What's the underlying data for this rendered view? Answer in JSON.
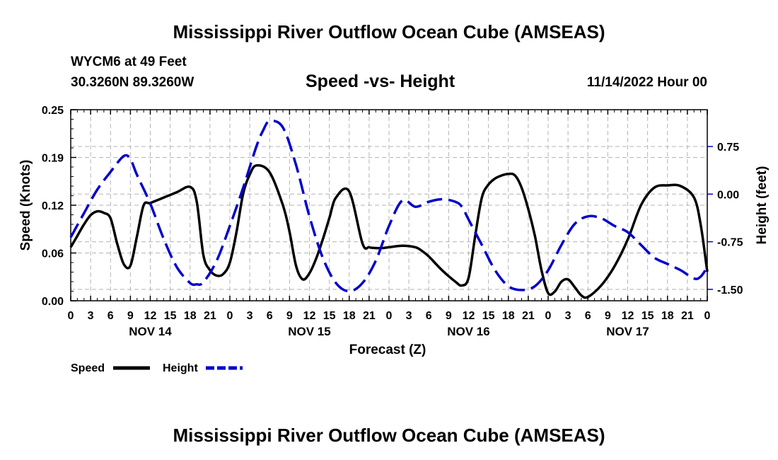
{
  "header": {
    "title": "Mississippi River Outflow Ocean Cube (AMSEAS)",
    "station": "WYCM6 at 49 Feet",
    "coords": "30.3260N  89.3260W",
    "subtitle": "Speed -vs- Height",
    "datetime": "11/14/2022 Hour 00"
  },
  "footer": {
    "title": "Mississippi River Outflow Ocean Cube (AMSEAS)"
  },
  "legend": {
    "speed_label": "Speed",
    "height_label": "Height"
  },
  "colors": {
    "speed": "#000000",
    "height": "#0000cc",
    "grid": "#b4b4b4"
  },
  "chart_data": {
    "type": "line",
    "title": "Speed -vs- Height",
    "xlabel": "Forecast (Z)",
    "ylabel": "Speed (Knots)",
    "y2label": "Height (feet)",
    "xlim": [
      0,
      96
    ],
    "ylim": [
      0,
      0.25
    ],
    "y2lim": [
      -1.68,
      1.33
    ],
    "x_tick_hours": [
      0,
      3,
      6,
      9,
      12,
      15,
      18,
      21,
      24,
      27,
      30,
      33,
      36,
      39,
      42,
      45,
      48,
      51,
      54,
      57,
      60,
      63,
      66,
      69,
      72,
      75,
      78,
      81,
      84,
      87,
      90,
      93,
      96
    ],
    "x_tick_labels": [
      "0",
      "3",
      "6",
      "9",
      "12",
      "15",
      "18",
      "21",
      "0",
      "3",
      "6",
      "9",
      "12",
      "15",
      "18",
      "21",
      "0",
      "3",
      "6",
      "9",
      "12",
      "15",
      "18",
      "21",
      "0",
      "3",
      "6",
      "9",
      "12",
      "15",
      "18",
      "21",
      "0"
    ],
    "day_labels": [
      {
        "label": "NOV 14",
        "hour": 12
      },
      {
        "label": "NOV 15",
        "hour": 36
      },
      {
        "label": "NOV 16",
        "hour": 60
      },
      {
        "label": "NOV 17",
        "hour": 84
      }
    ],
    "y_ticks": [
      {
        "value": 0.0,
        "label": "0.00"
      },
      {
        "value": 0.0625,
        "label": "0.06"
      },
      {
        "value": 0.125,
        "label": "0.12"
      },
      {
        "value": 0.1875,
        "label": "0.19"
      },
      {
        "value": 0.25,
        "label": "0.25"
      }
    ],
    "y2_ticks": [
      {
        "value": 0.75,
        "label": "0.75"
      },
      {
        "value": 0.0,
        "label": "0.00"
      },
      {
        "value": -0.75,
        "label": "-0.75"
      },
      {
        "value": -1.5,
        "label": "-1.50"
      }
    ],
    "series": [
      {
        "name": "Speed",
        "axis": "left",
        "style": "solid",
        "x": [
          0,
          1,
          2,
          3,
          4,
          5,
          6,
          7,
          8,
          9,
          10,
          11,
          12,
          14,
          16,
          18,
          19,
          20,
          21,
          22,
          23,
          24,
          25,
          26,
          27,
          28,
          30,
          32,
          33,
          34,
          35,
          36,
          37,
          38,
          39,
          40,
          42,
          44,
          45,
          46,
          47,
          48,
          50,
          52,
          53,
          54,
          56,
          58,
          59,
          60,
          61,
          62,
          63,
          64,
          65,
          66,
          67,
          68,
          69,
          70,
          71,
          72,
          73,
          74,
          75,
          76,
          77,
          78,
          80,
          82,
          84,
          86,
          88,
          90,
          92,
          94,
          95,
          96
        ],
        "y": [
          0.07,
          0.085,
          0.1,
          0.112,
          0.117,
          0.115,
          0.108,
          0.075,
          0.048,
          0.046,
          0.085,
          0.125,
          0.128,
          0.135,
          0.142,
          0.149,
          0.13,
          0.06,
          0.04,
          0.033,
          0.035,
          0.05,
          0.09,
          0.14,
          0.165,
          0.177,
          0.168,
          0.125,
          0.09,
          0.045,
          0.028,
          0.036,
          0.055,
          0.08,
          0.108,
          0.135,
          0.143,
          0.075,
          0.07,
          0.069,
          0.069,
          0.07,
          0.072,
          0.07,
          0.065,
          0.058,
          0.04,
          0.025,
          0.02,
          0.03,
          0.085,
          0.135,
          0.152,
          0.16,
          0.164,
          0.166,
          0.164,
          0.148,
          0.12,
          0.085,
          0.04,
          0.01,
          0.012,
          0.025,
          0.028,
          0.018,
          0.007,
          0.005,
          0.02,
          0.045,
          0.08,
          0.125,
          0.148,
          0.151,
          0.15,
          0.135,
          0.1,
          0.038
        ]
      },
      {
        "name": "Height",
        "axis": "right",
        "style": "dashed",
        "x": [
          0,
          2,
          4,
          6,
          8,
          9,
          10,
          12,
          14,
          16,
          18,
          19,
          20,
          22,
          24,
          26,
          28,
          29,
          30,
          32,
          34,
          36,
          38,
          40,
          42,
          44,
          46,
          48,
          50,
          52,
          54,
          56,
          58,
          59,
          60,
          62,
          64,
          66,
          68,
          70,
          72,
          74,
          76,
          78,
          80,
          82,
          84,
          86,
          88,
          90,
          92,
          94,
          95,
          96
        ],
        "y": [
          -0.68,
          -0.3,
          0.07,
          0.35,
          0.6,
          0.55,
          0.3,
          -0.15,
          -0.7,
          -1.15,
          -1.4,
          -1.42,
          -1.39,
          -1.05,
          -0.5,
          0.1,
          0.75,
          1.0,
          1.15,
          1.05,
          0.45,
          -0.35,
          -1.0,
          -1.4,
          -1.53,
          -1.4,
          -1.05,
          -0.5,
          -0.1,
          -0.2,
          -0.12,
          -0.08,
          -0.12,
          -0.2,
          -0.4,
          -0.8,
          -1.2,
          -1.45,
          -1.51,
          -1.45,
          -1.2,
          -0.8,
          -0.47,
          -0.35,
          -0.38,
          -0.5,
          -0.6,
          -0.8,
          -1.0,
          -1.1,
          -1.2,
          -1.33,
          -1.3,
          -1.15
        ]
      }
    ]
  }
}
